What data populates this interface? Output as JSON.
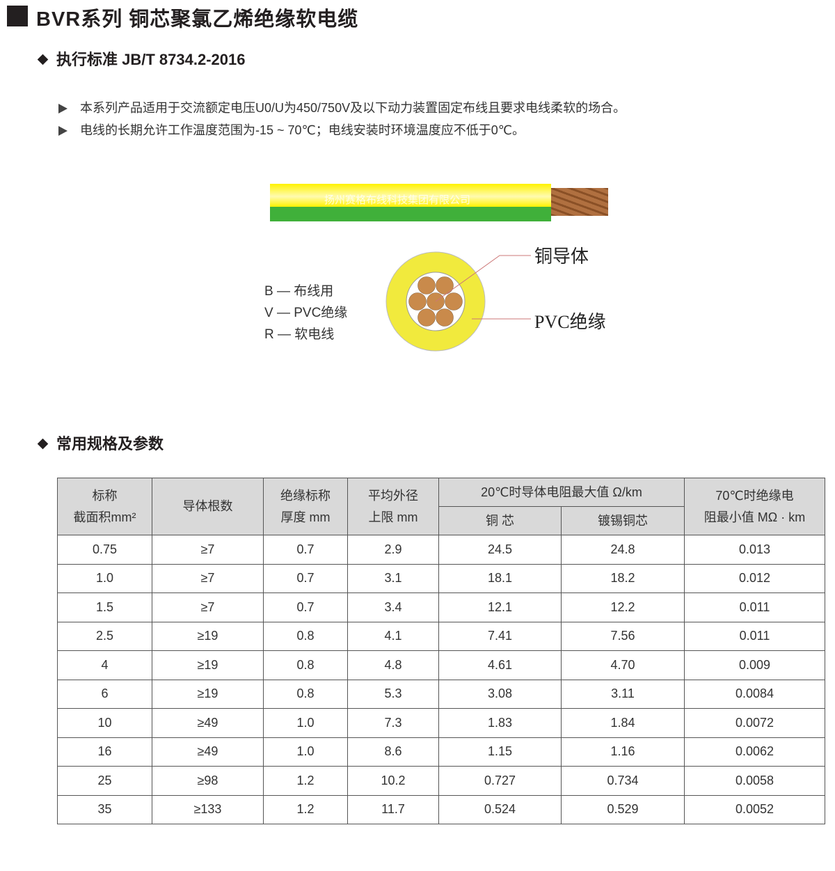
{
  "title": "BVR系列 铜芯聚氯乙烯绝缘软电缆",
  "standard": "执行标准 JB/T 8734.2-2016",
  "bullets": [
    "本系列产品适用于交流额定电压U0/U为450/750V及以下动力装置固定布线且要求电线柔软的场合。",
    "电线的长期允许工作温度范围为-15 ~ 70℃；电线安装时环境温度应不低于0℃。"
  ],
  "cable": {
    "watermark": "扬州赛格布线科技集团有限公司",
    "colors": {
      "yellow": "#fff200",
      "green": "#40b03a",
      "copper": "#c98a4b"
    }
  },
  "codes": [
    "B — 布线用",
    "V — PVC绝缘",
    "R — 软电线"
  ],
  "callouts": {
    "conductor": "铜导体",
    "insulation": "PVC绝缘"
  },
  "spec_title": "常用规格及参数",
  "table": {
    "headers": {
      "c1": [
        "标称",
        "截面积mm²"
      ],
      "c2": "导体根数",
      "c3": [
        "绝缘标称",
        "厚度 mm"
      ],
      "c4": [
        "平均外径",
        "上限 mm"
      ],
      "c5": "20℃时导体电阻最大值 Ω/km",
      "c5a": "铜 芯",
      "c5b": "镀锡铜芯",
      "c6": [
        "70℃时绝缘电",
        "阻最小值 MΩ · km"
      ]
    },
    "rows": [
      [
        "0.75",
        "≥7",
        "0.7",
        "2.9",
        "24.5",
        "24.8",
        "0.013"
      ],
      [
        "1.0",
        "≥7",
        "0.7",
        "3.1",
        "18.1",
        "18.2",
        "0.012"
      ],
      [
        "1.5",
        "≥7",
        "0.7",
        "3.4",
        "12.1",
        "12.2",
        "0.011"
      ],
      [
        "2.5",
        "≥19",
        "0.8",
        "4.1",
        "7.41",
        "7.56",
        "0.011"
      ],
      [
        "4",
        "≥19",
        "0.8",
        "4.8",
        "4.61",
        "4.70",
        "0.009"
      ],
      [
        "6",
        "≥19",
        "0.8",
        "5.3",
        "3.08",
        "3.11",
        "0.0084"
      ],
      [
        "10",
        "≥49",
        "1.0",
        "7.3",
        "1.83",
        "1.84",
        "0.0072"
      ],
      [
        "16",
        "≥49",
        "1.0",
        "8.6",
        "1.15",
        "1.16",
        "0.0062"
      ],
      [
        "25",
        "≥98",
        "1.2",
        "10.2",
        "0.727",
        "0.734",
        "0.0058"
      ],
      [
        "35",
        "≥133",
        "1.2",
        "11.7",
        "0.524",
        "0.529",
        "0.0052"
      ]
    ]
  }
}
